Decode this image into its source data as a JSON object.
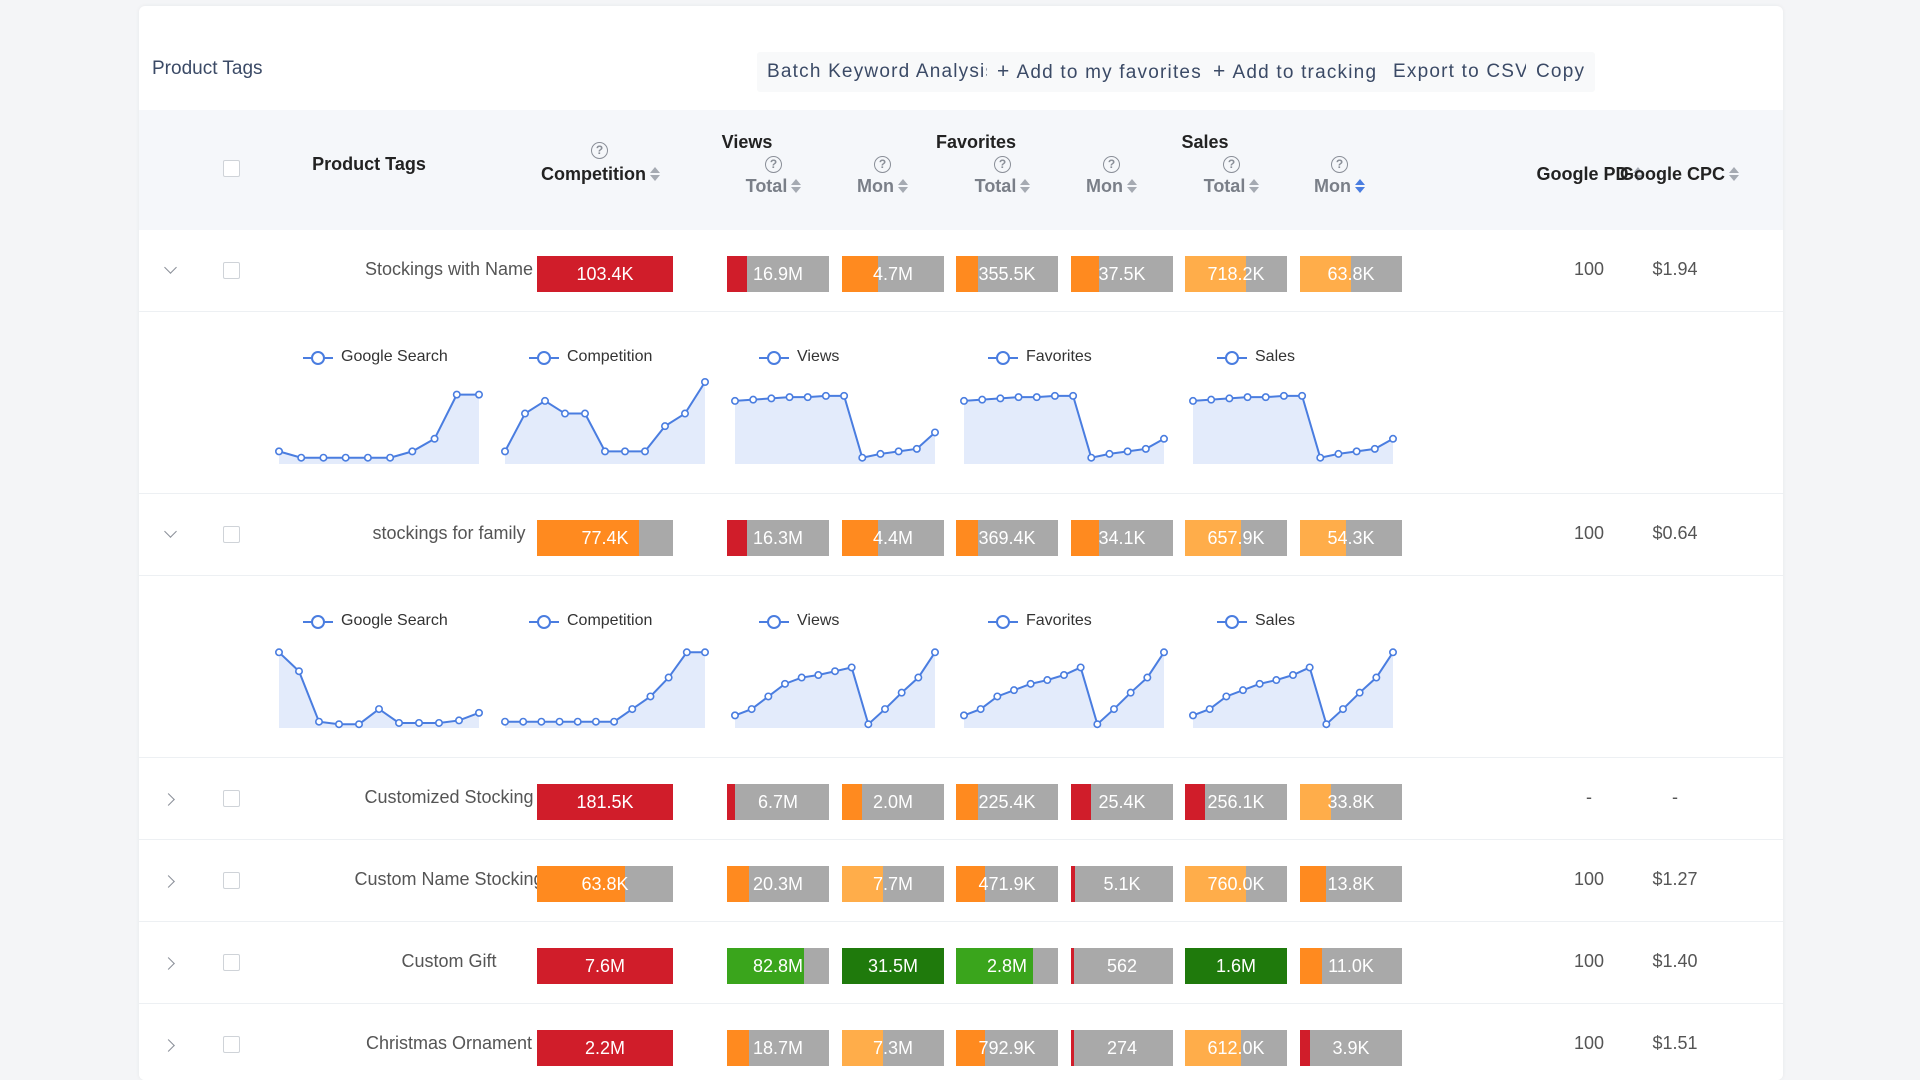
{
  "toolbar": {
    "title": "Product Tags",
    "batch": "Batch Keyword Analysis",
    "favorites": "Add to my favorites",
    "tracking": "Add to tracking",
    "export": "Export to CSV",
    "copy": "Copy"
  },
  "header": {
    "product_tags": "Product Tags",
    "competition": "Competition",
    "views": "Views",
    "favorites": "Favorites",
    "sales": "Sales",
    "total": "Total",
    "mon": "Mon",
    "google_pd": "Google PD",
    "google_cpc": "Google CPC",
    "help_glyph": "?"
  },
  "colors": {
    "red": "#d01d2a",
    "orange": "#ff8a1f",
    "lightorange": "#ffad4a",
    "green": "#3aa51c",
    "darkgreen": "#1f7a0c",
    "gray": "#a9a9a9",
    "line": "#4a7de0"
  },
  "legends": [
    "Google Search",
    "Competition",
    "Views",
    "Favorites",
    "Sales"
  ],
  "rows": [
    {
      "keyword": "Stockings with Name",
      "expanded": true,
      "cells": [
        {
          "v": "103.4K",
          "c": "red",
          "f": 1.0
        },
        {
          "v": "16.9M",
          "c": "red",
          "f": 0.2
        },
        {
          "v": "4.7M",
          "c": "orange",
          "f": 0.35
        },
        {
          "v": "355.5K",
          "c": "orange",
          "f": 0.22
        },
        {
          "v": "37.5K",
          "c": "orange",
          "f": 0.27
        },
        {
          "v": "718.2K",
          "c": "lightorange",
          "f": 0.6
        },
        {
          "v": "63.8K",
          "c": "lightorange",
          "f": 0.5
        }
      ],
      "pd": "100",
      "cpc": "$1.94",
      "trend": [
        [
          1,
          0.5,
          0.5,
          0.5,
          0.5,
          0.5,
          1,
          2,
          5.5,
          5.5
        ],
        [
          1,
          4,
          5,
          4,
          4,
          1,
          1,
          1,
          3,
          4,
          6.5
        ],
        [
          5,
          5.1,
          5.2,
          5.3,
          5.3,
          5.4,
          5.4,
          0.5,
          0.8,
          1,
          1.2,
          2.5
        ],
        [
          5,
          5.1,
          5.2,
          5.3,
          5.3,
          5.4,
          5.4,
          0.5,
          0.8,
          1,
          1.2,
          2
        ],
        [
          5,
          5.1,
          5.2,
          5.3,
          5.3,
          5.4,
          5.4,
          0.5,
          0.8,
          1,
          1.2,
          2
        ]
      ]
    },
    {
      "keyword": "stockings for family",
      "expanded": true,
      "cells": [
        {
          "v": "77.4K",
          "c": "orange",
          "f": 0.75
        },
        {
          "v": "16.3M",
          "c": "red",
          "f": 0.2
        },
        {
          "v": "4.4M",
          "c": "orange",
          "f": 0.35
        },
        {
          "v": "369.4K",
          "c": "orange",
          "f": 0.22
        },
        {
          "v": "34.1K",
          "c": "orange",
          "f": 0.27
        },
        {
          "v": "657.9K",
          "c": "lightorange",
          "f": 0.55
        },
        {
          "v": "54.3K",
          "c": "lightorange",
          "f": 0.45
        }
      ],
      "pd": "100",
      "cpc": "$0.64",
      "trend": [
        [
          6,
          4.5,
          0.5,
          0.3,
          0.3,
          1.5,
          0.4,
          0.4,
          0.4,
          0.6,
          1.2
        ],
        [
          0.5,
          0.5,
          0.5,
          0.5,
          0.5,
          0.5,
          0.5,
          1.5,
          2.5,
          4,
          6,
          6
        ],
        [
          1,
          1.5,
          2.5,
          3.5,
          4,
          4.2,
          4.5,
          4.8,
          0.3,
          1.5,
          2.8,
          4,
          6
        ],
        [
          1,
          1.5,
          2.5,
          3,
          3.5,
          3.8,
          4.2,
          4.8,
          0.3,
          1.5,
          2.8,
          4,
          6
        ],
        [
          1,
          1.5,
          2.5,
          3,
          3.5,
          3.8,
          4.2,
          4.8,
          0.3,
          1.5,
          2.8,
          4,
          6
        ]
      ]
    },
    {
      "keyword": "Customized Stocking",
      "expanded": false,
      "cells": [
        {
          "v": "181.5K",
          "c": "red",
          "f": 1.0
        },
        {
          "v": "6.7M",
          "c": "red",
          "f": 0.08
        },
        {
          "v": "2.0M",
          "c": "orange",
          "f": 0.2
        },
        {
          "v": "225.4K",
          "c": "orange",
          "f": 0.22
        },
        {
          "v": "25.4K",
          "c": "red",
          "f": 0.2
        },
        {
          "v": "256.1K",
          "c": "red",
          "f": 0.2
        },
        {
          "v": "33.8K",
          "c": "lightorange",
          "f": 0.3
        }
      ],
      "pd": "-",
      "cpc": "-"
    },
    {
      "keyword": "Custom Name Stocking",
      "expanded": false,
      "cells": [
        {
          "v": "63.8K",
          "c": "orange",
          "f": 0.65
        },
        {
          "v": "20.3M",
          "c": "orange",
          "f": 0.22
        },
        {
          "v": "7.7M",
          "c": "lightorange",
          "f": 0.4
        },
        {
          "v": "471.9K",
          "c": "orange",
          "f": 0.28
        },
        {
          "v": "5.1K",
          "c": "red",
          "f": 0.04
        },
        {
          "v": "760.0K",
          "c": "lightorange",
          "f": 0.6
        },
        {
          "v": "13.8K",
          "c": "orange",
          "f": 0.25
        }
      ],
      "pd": "100",
      "cpc": "$1.27"
    },
    {
      "keyword": "Custom Gift",
      "expanded": false,
      "cells": [
        {
          "v": "7.6M",
          "c": "red",
          "f": 1.0
        },
        {
          "v": "82.8M",
          "c": "green",
          "f": 0.75
        },
        {
          "v": "31.5M",
          "c": "darkgreen",
          "f": 1.0
        },
        {
          "v": "2.8M",
          "c": "green",
          "f": 0.75
        },
        {
          "v": "562",
          "c": "red",
          "f": 0.02
        },
        {
          "v": "1.6M",
          "c": "darkgreen",
          "f": 1.0
        },
        {
          "v": "11.0K",
          "c": "orange",
          "f": 0.22
        }
      ],
      "pd": "100",
      "cpc": "$1.40"
    },
    {
      "keyword": "Christmas Ornament",
      "expanded": false,
      "cells": [
        {
          "v": "2.2M",
          "c": "red",
          "f": 1.0
        },
        {
          "v": "18.7M",
          "c": "orange",
          "f": 0.22
        },
        {
          "v": "7.3M",
          "c": "lightorange",
          "f": 0.4
        },
        {
          "v": "792.9K",
          "c": "orange",
          "f": 0.28
        },
        {
          "v": "274",
          "c": "red",
          "f": 0.02
        },
        {
          "v": "612.0K",
          "c": "lightorange",
          "f": 0.55
        },
        {
          "v": "3.9K",
          "c": "red",
          "f": 0.1
        }
      ],
      "pd": "100",
      "cpc": "$1.51"
    }
  ]
}
